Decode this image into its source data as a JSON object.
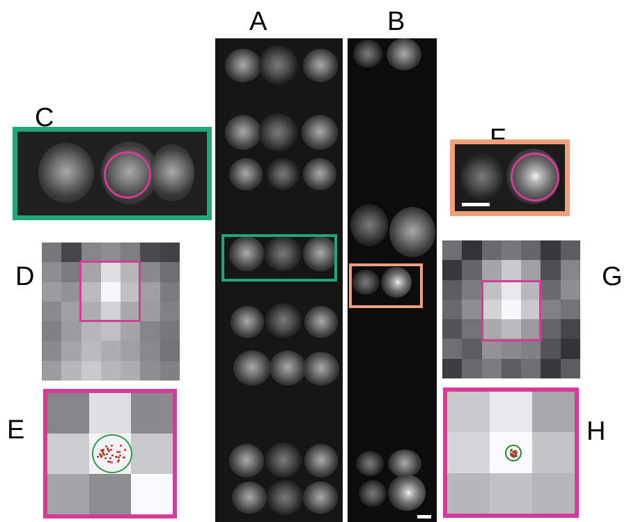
{
  "labels": {
    "a": "A",
    "b": "B",
    "c": "C",
    "d": "D",
    "e": "E",
    "f": "F",
    "g": "G",
    "h": "H"
  },
  "colors": {
    "teal": "#1fa67a",
    "magenta": "#d63b9a",
    "salmon": "#f2a07b",
    "red_points": "#c0392b",
    "green_points": "#2e7d32"
  },
  "grid_d": [
    [
      0.42,
      0.2,
      0.48,
      0.52,
      0.45,
      0.22,
      0.18
    ],
    [
      0.52,
      0.44,
      0.62,
      0.88,
      0.7,
      0.5,
      0.38
    ],
    [
      0.58,
      0.54,
      0.72,
      0.98,
      0.74,
      0.6,
      0.44
    ],
    [
      0.5,
      0.6,
      0.66,
      0.82,
      0.64,
      0.58,
      0.46
    ],
    [
      0.46,
      0.58,
      0.7,
      0.74,
      0.62,
      0.48,
      0.42
    ],
    [
      0.5,
      0.62,
      0.72,
      0.66,
      0.6,
      0.5,
      0.4
    ],
    [
      0.58,
      0.7,
      0.78,
      0.7,
      0.66,
      0.52,
      0.46
    ]
  ],
  "grid_g": [
    [
      0.38,
      0.12,
      0.36,
      0.42,
      0.34,
      0.14,
      0.3
    ],
    [
      0.14,
      0.34,
      0.62,
      0.78,
      0.6,
      0.24,
      0.48
    ],
    [
      0.3,
      0.44,
      0.74,
      0.92,
      0.7,
      0.36,
      0.52
    ],
    [
      0.36,
      0.52,
      0.82,
      0.99,
      0.78,
      0.46,
      0.4
    ],
    [
      0.26,
      0.4,
      0.64,
      0.72,
      0.58,
      0.34,
      0.2
    ],
    [
      0.38,
      0.3,
      0.54,
      0.5,
      0.46,
      0.26,
      0.12
    ],
    [
      0.16,
      0.36,
      0.44,
      0.3,
      0.38,
      0.14,
      0.3
    ]
  ],
  "grid_e": [
    [
      0.48,
      0.88,
      0.5
    ],
    [
      0.8,
      0.97,
      0.78
    ],
    [
      0.62,
      0.52,
      1.0
    ]
  ],
  "grid_h": [
    [
      0.78,
      0.92,
      0.64
    ],
    [
      0.84,
      1.0,
      0.76
    ],
    [
      0.7,
      0.74,
      0.7
    ]
  ]
}
